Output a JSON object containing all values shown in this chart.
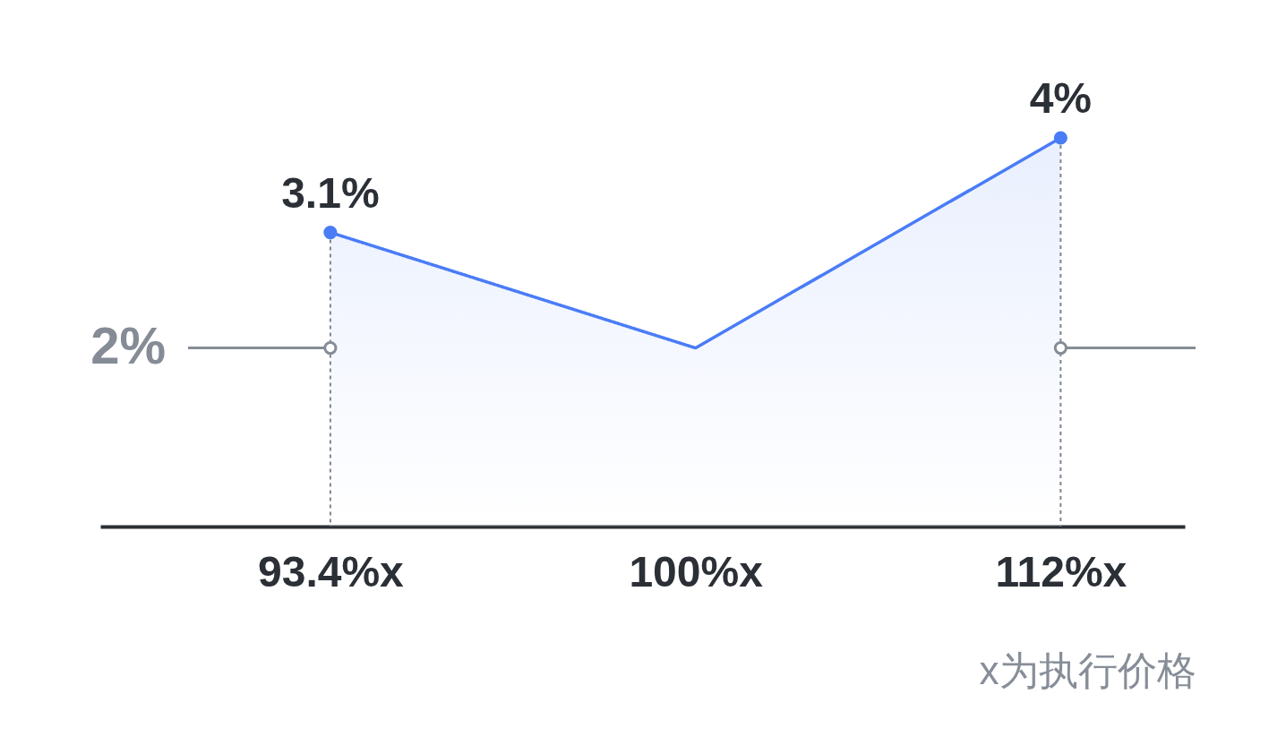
{
  "chart_data": {
    "type": "area",
    "categories": [
      "93.4%x",
      "100%x",
      "112%x"
    ],
    "xlabel": "x为执行价格",
    "ylim": [
      0.3,
      4
    ],
    "tick_labels": "x",
    "series": [
      {
        "color": "#4a7cf7",
        "values": [
          3.1,
          2,
          4
        ]
      },
      {
        "type": "lollipop",
        "color": "#4a7cf7",
        "values": [
          3.1,
          null,
          4
        ],
        "value_labels": [
          "3.1%",
          null,
          "4%"
        ],
        "line_style": "dotted"
      },
      {
        "type": "scatter",
        "color": "#858c96",
        "values": [
          2,
          null,
          2
        ]
      }
    ],
    "ref_lines": [
      {
        "axis": "y",
        "value": 2,
        "label": "2%",
        "color": "#858c96"
      }
    ]
  }
}
